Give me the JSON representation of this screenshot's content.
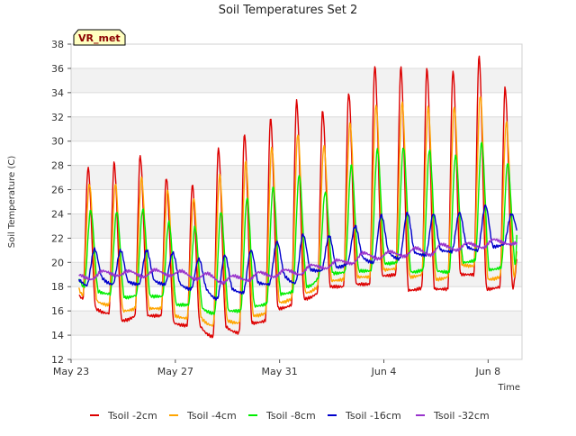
{
  "chart_data": {
    "type": "line",
    "title": "Soil Temperatures Set 2",
    "xlabel": "Time",
    "ylabel": "Soil Temperature (C)",
    "badge": "VR_met",
    "xlim": [
      0,
      17.3
    ],
    "ylim": [
      12,
      38
    ],
    "yticks": [
      12,
      14,
      16,
      18,
      20,
      22,
      24,
      26,
      28,
      30,
      32,
      34,
      36,
      38
    ],
    "xticks": [
      {
        "day": 0,
        "label": "May 23"
      },
      {
        "day": 4,
        "label": "May 27"
      },
      {
        "day": 8,
        "label": "May 31"
      },
      {
        "day": 12,
        "label": "Jun 4"
      },
      {
        "day": 16,
        "label": "Jun 8"
      }
    ],
    "grid": true,
    "band_fill": "#f2f2f2",
    "legend_position": "bottom",
    "series": [
      {
        "name": "Tsoil -2cm",
        "color": "#dd0000",
        "x": [
          0.3,
          0.45,
          0.65,
          0.95,
          1.45,
          1.65,
          1.95,
          2.45,
          2.65,
          2.95,
          3.45,
          3.65,
          3.95,
          4.45,
          4.65,
          4.95,
          5.45,
          5.65,
          5.95,
          6.45,
          6.65,
          6.95,
          7.45,
          7.65,
          7.95,
          8.45,
          8.65,
          8.95,
          9.45,
          9.65,
          9.95,
          10.45,
          10.65,
          10.95,
          11.45,
          11.65,
          11.95,
          12.45,
          12.65,
          12.95,
          13.45,
          13.65,
          13.95,
          14.45,
          14.65,
          14.95,
          15.45,
          15.65,
          15.95,
          16.45,
          16.65,
          16.95,
          17.1
        ],
        "y": [
          17.3,
          17.0,
          27.8,
          16.2,
          15.8,
          28.2,
          15.2,
          15.6,
          28.8,
          15.6,
          15.6,
          27.0,
          15.0,
          14.8,
          26.4,
          14.8,
          13.9,
          29.4,
          14.7,
          14.2,
          30.6,
          15.0,
          15.2,
          31.9,
          16.2,
          16.5,
          33.3,
          17.0,
          17.5,
          32.5,
          18.0,
          18.0,
          34.0,
          18.2,
          18.2,
          36.2,
          18.9,
          19.0,
          36.1,
          17.7,
          17.9,
          36.0,
          17.8,
          17.8,
          35.8,
          19.0,
          19.0,
          37.0,
          17.8,
          18.0,
          34.4,
          17.9,
          20.2
        ]
      },
      {
        "name": "Tsoil -4cm",
        "color": "#ffa500",
        "x": [
          0.3,
          0.45,
          0.7,
          1.0,
          1.45,
          1.7,
          2.0,
          2.45,
          2.7,
          3.0,
          3.45,
          3.7,
          4.0,
          4.45,
          4.7,
          5.0,
          5.45,
          5.7,
          6.0,
          6.45,
          6.7,
          7.0,
          7.45,
          7.7,
          8.0,
          8.45,
          8.7,
          9.0,
          9.45,
          9.7,
          10.0,
          10.45,
          10.7,
          11.0,
          11.45,
          11.7,
          12.0,
          12.45,
          12.7,
          13.0,
          13.45,
          13.7,
          14.0,
          14.45,
          14.7,
          15.0,
          15.45,
          15.7,
          16.0,
          16.45,
          16.7,
          17.0,
          17.1
        ],
        "y": [
          17.8,
          17.3,
          26.5,
          16.8,
          16.5,
          26.5,
          16.0,
          16.2,
          27.0,
          16.2,
          16.2,
          26.0,
          15.6,
          15.4,
          25.3,
          15.4,
          14.8,
          27.2,
          15.2,
          15.0,
          28.3,
          15.6,
          15.8,
          29.5,
          16.7,
          17.0,
          30.6,
          17.5,
          18.0,
          29.6,
          18.5,
          18.6,
          31.5,
          18.8,
          18.8,
          33.0,
          19.4,
          19.5,
          33.2,
          18.8,
          19.0,
          32.8,
          18.6,
          18.8,
          32.8,
          19.8,
          19.7,
          33.8,
          18.6,
          18.8,
          31.6,
          18.8,
          20.9
        ]
      },
      {
        "name": "Tsoil -8cm",
        "color": "#00ee00",
        "x": [
          0.3,
          0.5,
          0.75,
          1.05,
          1.5,
          1.75,
          2.05,
          2.5,
          2.75,
          3.05,
          3.5,
          3.75,
          4.05,
          4.5,
          4.75,
          5.05,
          5.5,
          5.75,
          6.05,
          6.5,
          6.75,
          7.05,
          7.5,
          7.75,
          8.05,
          8.5,
          8.75,
          9.05,
          9.5,
          9.75,
          10.05,
          10.5,
          10.75,
          11.05,
          11.5,
          11.75,
          12.05,
          12.5,
          12.75,
          13.05,
          13.5,
          13.75,
          14.05,
          14.5,
          14.75,
          15.05,
          15.5,
          15.75,
          16.05,
          16.5,
          16.75,
          17.05,
          17.1
        ],
        "y": [
          18.6,
          18.0,
          24.3,
          17.6,
          17.4,
          24.2,
          17.1,
          17.3,
          24.4,
          17.2,
          17.2,
          23.3,
          16.5,
          16.5,
          22.9,
          16.2,
          15.8,
          24.2,
          16.0,
          16.0,
          25.3,
          16.4,
          16.6,
          26.2,
          17.4,
          17.6,
          27.2,
          18.0,
          18.8,
          25.8,
          19.1,
          19.2,
          28.0,
          19.3,
          19.3,
          29.3,
          19.9,
          20.0,
          29.5,
          19.2,
          19.4,
          29.3,
          19.3,
          19.2,
          28.8,
          20.0,
          20.2,
          29.9,
          19.4,
          19.6,
          28.2,
          19.8,
          22.4
        ]
      },
      {
        "name": "Tsoil -16cm",
        "color": "#0000cc",
        "x": [
          0.3,
          0.6,
          0.9,
          1.2,
          1.6,
          1.9,
          2.2,
          2.6,
          2.9,
          3.2,
          3.6,
          3.9,
          4.2,
          4.6,
          4.9,
          5.2,
          5.6,
          5.9,
          6.2,
          6.6,
          6.9,
          7.2,
          7.6,
          7.9,
          8.2,
          8.6,
          8.9,
          9.2,
          9.6,
          9.9,
          10.2,
          10.6,
          10.9,
          11.2,
          11.6,
          11.9,
          12.2,
          12.6,
          12.9,
          13.2,
          13.6,
          13.9,
          14.2,
          14.6,
          14.9,
          15.2,
          15.6,
          15.9,
          16.2,
          16.6,
          16.9,
          17.1
        ],
        "y": [
          18.6,
          18.1,
          21.1,
          18.7,
          18.2,
          21.0,
          18.4,
          18.2,
          21.0,
          18.5,
          18.2,
          20.8,
          18.2,
          17.8,
          20.3,
          17.8,
          17.0,
          20.6,
          17.8,
          17.5,
          21.0,
          18.3,
          18.2,
          21.7,
          18.9,
          18.3,
          22.3,
          19.4,
          19.3,
          22.2,
          19.6,
          19.9,
          23.0,
          20.4,
          20.0,
          23.9,
          20.8,
          20.3,
          24.1,
          20.8,
          20.6,
          24.0,
          21.0,
          20.9,
          24.1,
          21.3,
          21.0,
          24.7,
          21.3,
          21.5,
          24.0,
          22.7
        ]
      },
      {
        "name": "Tsoil -32cm",
        "color": "#9933cc",
        "x": [
          0.3,
          0.8,
          1.2,
          1.8,
          2.2,
          2.8,
          3.2,
          3.8,
          4.2,
          4.8,
          5.2,
          5.8,
          6.2,
          6.8,
          7.2,
          7.8,
          8.2,
          8.8,
          9.2,
          9.8,
          10.2,
          10.8,
          11.2,
          11.8,
          12.2,
          12.8,
          13.2,
          13.8,
          14.2,
          14.8,
          15.2,
          15.8,
          16.2,
          16.8,
          17.1
        ],
        "y": [
          19.0,
          18.6,
          19.3,
          18.9,
          19.3,
          18.8,
          19.4,
          18.9,
          19.3,
          18.6,
          19.1,
          18.3,
          18.9,
          18.5,
          19.2,
          18.8,
          19.4,
          19.0,
          19.8,
          19.5,
          20.2,
          19.9,
          20.8,
          20.3,
          20.9,
          20.5,
          21.2,
          20.6,
          21.5,
          21.0,
          21.6,
          21.2,
          21.9,
          21.5,
          21.6
        ]
      }
    ]
  }
}
